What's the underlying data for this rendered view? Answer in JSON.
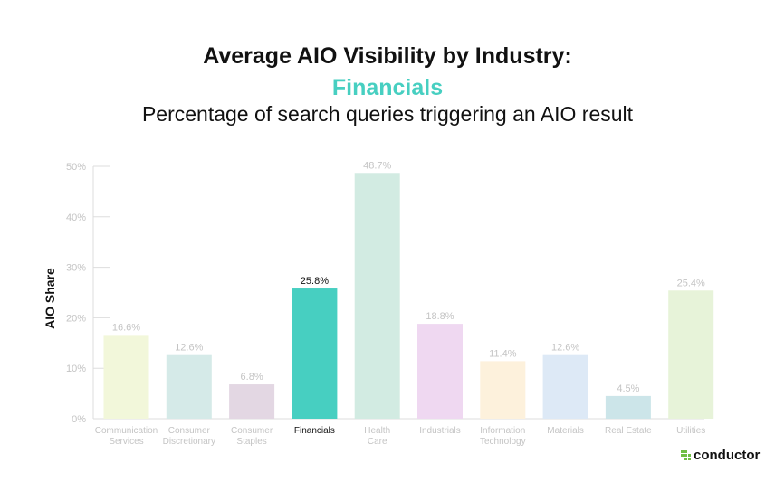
{
  "header": {
    "title": "Average AIO Visibility by Industry:",
    "highlight": "Financials",
    "subtitle": "Percentage of search queries triggering an AIO result"
  },
  "brand": {
    "logo_text": "conductor",
    "logo_color": "#6fbe44"
  },
  "chart_data": {
    "type": "bar",
    "ylabel": "AIO Share",
    "ylim": [
      0,
      50
    ],
    "yticks": [
      "0%",
      "10%",
      "20%",
      "30%",
      "40%",
      "50%"
    ],
    "grid": false,
    "highlighted_category": "Financials",
    "categories": [
      [
        "Communication",
        "Services"
      ],
      [
        "Consumer",
        "Discretionary"
      ],
      [
        "Consumer",
        "Staples"
      ],
      [
        "Financials"
      ],
      [
        "Health",
        "Care"
      ],
      [
        "Industrials"
      ],
      [
        "Information",
        "Technology"
      ],
      [
        "Materials"
      ],
      [
        "Real Estate"
      ],
      [
        "Utilities"
      ]
    ],
    "values": [
      16.6,
      12.6,
      6.8,
      25.8,
      48.7,
      18.8,
      11.4,
      12.6,
      4.5,
      25.4
    ],
    "labels": [
      "16.6%",
      "12.6%",
      "6.8%",
      "25.8%",
      "48.7%",
      "18.8%",
      "11.4%",
      "12.6%",
      "4.5%",
      "25.4%"
    ],
    "colors": [
      "#f2f7da",
      "#d5eae8",
      "#e3d7e3",
      "#47cfc1",
      "#d2ebe2",
      "#efd8f1",
      "#fdf1dc",
      "#dde9f6",
      "#cce5e9",
      "#e7f3d9"
    ]
  }
}
